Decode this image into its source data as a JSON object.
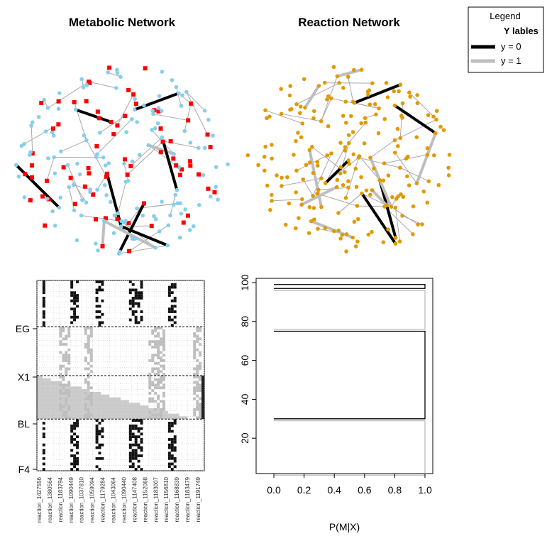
{
  "colors": {
    "metabolite": "#87CEEB",
    "reaction_met": "#FF0000",
    "reaction_net": "#E09A00",
    "y0": "#000000",
    "y1": "#BEBEBE",
    "edge": "#A9A9A9"
  },
  "networks": {
    "metabolic": {
      "title": "Metabolic Network"
    },
    "reaction": {
      "title": "Reaction Network"
    }
  },
  "legend": {
    "title": "Legend",
    "header": "Y lables",
    "entries": [
      {
        "label": "y = 0",
        "color": "#000000"
      },
      {
        "label": "y = 1",
        "color": "#BEBEBE"
      }
    ]
  },
  "heatmap": {
    "row_labels": [
      "EG",
      "X1",
      "BL",
      "F4"
    ],
    "column_labels": [
      "reaction_1427556",
      "reaction_1380564",
      "reaction_1183794",
      "reaction_1090449",
      "reaction_1037810",
      "reaction_1059094",
      "reaction_1179284",
      "reaction_1043064",
      "reaction_1090440",
      "reaction_1147408",
      "reaction_1152088",
      "reaction_1183007",
      "reaction_1156810",
      "reaction_1168839",
      "reaction_1183479",
      "reaction_1191749"
    ]
  },
  "chart_data": {
    "type": "area",
    "xlabel": "P(M|X)",
    "ylabel": "",
    "xlim": [
      0,
      1
    ],
    "ylim": [
      0,
      100
    ],
    "x_ticks": [
      "0.0",
      "0.2",
      "0.4",
      "0.6",
      "0.8",
      "1.0"
    ],
    "y_ticks": [
      "20",
      "40",
      "60",
      "80",
      "100"
    ],
    "series": [
      {
        "color": "#BEBEBE",
        "band": [
          1,
          29
        ]
      },
      {
        "color": "#000000",
        "band": [
          30,
          75
        ]
      },
      {
        "color": "#BEBEBE",
        "band": [
          76,
          96
        ]
      },
      {
        "color": "#000000",
        "band": [
          97,
          99
        ]
      }
    ]
  }
}
